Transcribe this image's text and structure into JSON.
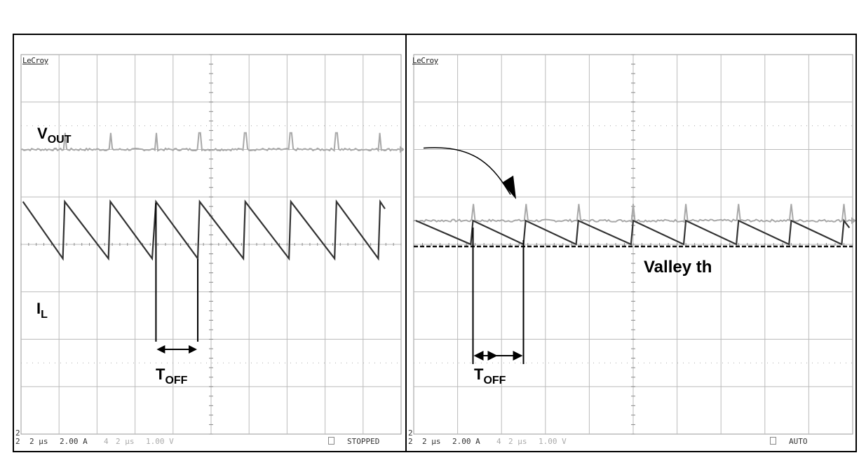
{
  "left_panel": {
    "brand": "LeCroy",
    "status": {
      "ch_number": "2",
      "timebase1": "2 µs",
      "scale1": "2.00 A",
      "ch2_number": "4",
      "timebase2": "2 µs",
      "scale2": "1.00 V",
      "state": "STOPPED"
    },
    "annotations": {
      "vout_main": "V",
      "vout_sub": "OUT",
      "il_main": "I",
      "il_sub": "L",
      "toff_main": "T",
      "toff_sub": "OFF"
    }
  },
  "right_panel": {
    "brand": "LeCroy",
    "status": {
      "ch_number": "2",
      "timebase1": "2 µs",
      "scale1": "2.00 A",
      "ch2_number": "4",
      "timebase2": "2 µs",
      "scale2": "1.00 V",
      "state": "AUTO"
    },
    "annotations": {
      "valley_label": "Valley th",
      "toff_main": "T",
      "toff_sub": "OFF"
    }
  },
  "colors": {
    "vout_trace": "#a8a8a8",
    "il_trace": "#333333",
    "grid": "#bbbbbb",
    "threshold": "#111111"
  },
  "chart_data": [
    {
      "type": "line",
      "title": "",
      "xlabel": "",
      "ylabel": "",
      "x_unit": "µs",
      "x_scale_per_div": 2,
      "xlim": [
        0,
        20
      ],
      "ylim_div": [
        -4,
        4
      ],
      "series": [
        {
          "trace": "vout",
          "x": [
            0,
            20
          ],
          "y": [
            2.0,
            2.0
          ],
          "spike_x": [
            2.3,
            4.7,
            7.1,
            9.4,
            11.8,
            14.2,
            16.6,
            18.9
          ]
        },
        {
          "trace": "il",
          "scale_per_div": "2.00 A",
          "peaks_x": [
            0.1,
            2.3,
            4.7,
            7.1,
            9.4,
            11.8,
            14.2,
            16.6,
            18.9
          ],
          "peaks_y": [
            0.9,
            0.9,
            0.9,
            0.9,
            0.9,
            0.9,
            0.9,
            0.9,
            0.9
          ],
          "valleys_x": [
            2.2,
            4.6,
            6.9,
            9.3,
            11.7,
            14.1,
            16.5,
            18.8
          ],
          "valleys_y": [
            -0.3,
            -0.3,
            -0.3,
            -0.3,
            -0.3,
            -0.3,
            -0.3,
            -0.3
          ]
        }
      ],
      "toff_markers_x": [
        7.1,
        9.3
      ]
    },
    {
      "type": "line",
      "title": "",
      "xlabel": "",
      "ylabel": "",
      "x_unit": "µs",
      "x_scale_per_div": 2,
      "xlim": [
        0,
        20
      ],
      "ylim_div": [
        -4,
        4
      ],
      "series": [
        {
          "trace": "vout",
          "x": [
            0,
            20
          ],
          "y": [
            0.5,
            0.5
          ],
          "spike_x": [
            2.7,
            5.1,
            7.5,
            10.0,
            12.4,
            14.8,
            17.2,
            19.6
          ]
        },
        {
          "trace": "il",
          "scale_per_div": "2.00 A",
          "peaks_x": [
            0.1,
            2.7,
            5.1,
            7.5,
            10.0,
            12.4,
            14.8,
            17.2,
            19.6
          ],
          "peaks_y": [
            0.5,
            0.5,
            0.5,
            0.5,
            0.5,
            0.5,
            0.5,
            0.5,
            0.5
          ],
          "valleys_x": [
            2.6,
            5.0,
            7.4,
            9.9,
            12.3,
            14.7,
            17.1,
            19.5
          ],
          "valleys_y": [
            0.0,
            0.0,
            0.0,
            0.0,
            0.0,
            0.0,
            0.0,
            0.0
          ]
        }
      ],
      "threshold_y": 0.0,
      "toff_markers_x": [
        2.7,
        5.0
      ]
    }
  ]
}
